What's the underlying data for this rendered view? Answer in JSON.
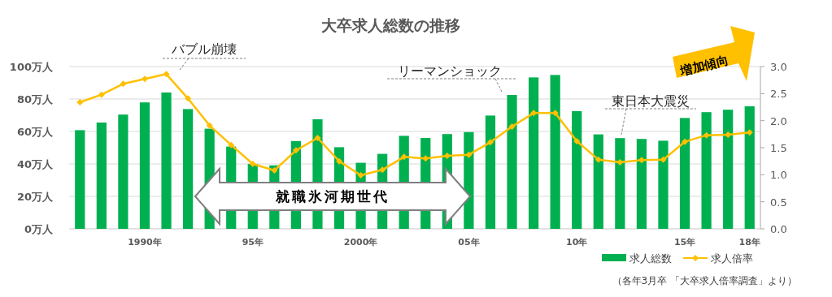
{
  "chart_data": {
    "type": "bar",
    "title": "大卒求人総数の推移",
    "categories": [
      null,
      null,
      null,
      "1990年",
      null,
      null,
      null,
      null,
      "95年",
      null,
      null,
      null,
      null,
      "2000年",
      null,
      null,
      null,
      null,
      "05年",
      null,
      null,
      null,
      null,
      "10年",
      null,
      null,
      null,
      null,
      "15年",
      null,
      null,
      "18年"
    ],
    "series": [
      {
        "name": "求人総数",
        "color": "#00b050",
        "values": [
          60.8,
          65.5,
          70.4,
          77.9,
          84.0,
          73.8,
          61.7,
          50.7,
          40.0,
          39.1,
          54.1,
          67.5,
          50.3,
          40.7,
          46.2,
          57.3,
          56.0,
          58.4,
          59.6,
          69.8,
          82.5,
          93.3,
          94.8,
          72.5,
          58.2,
          55.9,
          55.4,
          54.3,
          68.3,
          71.9,
          73.4,
          75.5
        ]
      },
      {
        "name": "求人倍率",
        "type": "line",
        "axis": "y2",
        "color": "#ffc000",
        "marker": "diamond",
        "values": [
          2.34,
          2.48,
          2.68,
          2.77,
          2.86,
          2.41,
          1.91,
          1.55,
          1.2,
          1.08,
          1.45,
          1.68,
          1.25,
          0.99,
          1.09,
          1.33,
          1.3,
          1.35,
          1.37,
          1.6,
          1.89,
          2.14,
          2.14,
          1.62,
          1.28,
          1.23,
          1.27,
          1.28,
          1.61,
          1.73,
          1.74,
          1.78
        ]
      }
    ],
    "ylim": [
      0,
      100
    ],
    "yticks": [
      {
        "value": 0,
        "label": "0万人"
      },
      {
        "value": 20,
        "label": "20万人"
      },
      {
        "value": 40,
        "label": "40万人"
      },
      {
        "value": 60,
        "label": "60万人"
      },
      {
        "value": 80,
        "label": "80万人"
      },
      {
        "value": 100,
        "label": "100万人"
      }
    ],
    "y2lim": [
      0,
      3
    ],
    "y2ticks": [
      {
        "value": 0,
        "label": "0.0"
      },
      {
        "value": 0.5,
        "label": "0.5"
      },
      {
        "value": 1,
        "label": "1.0"
      },
      {
        "value": 1.5,
        "label": "1.5"
      },
      {
        "value": 2,
        "label": "2.0"
      },
      {
        "value": 2.5,
        "label": "2.5"
      },
      {
        "value": 3,
        "label": "3.0"
      }
    ],
    "grid": "y",
    "legend": "bottom right",
    "annotations": [
      "バブル崩壊",
      "リーマンショック",
      "東日本大震災",
      "就職氷河期世代",
      "増加傾向",
      "（各年3月卒 「大卒求人倍率調査」より）"
    ]
  }
}
